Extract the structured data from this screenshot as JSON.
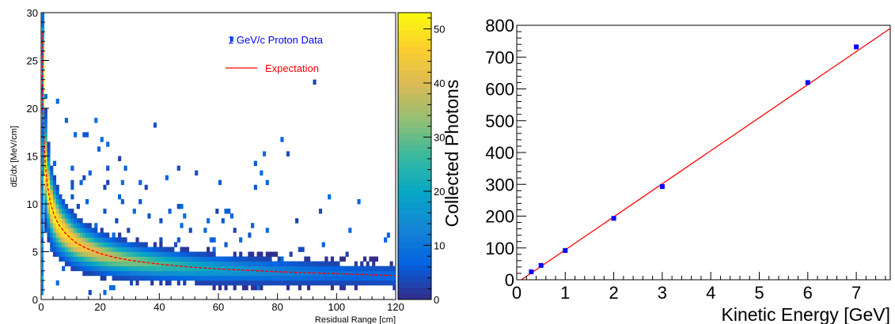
{
  "chart_data": [
    {
      "type": "heatmap",
      "title": "",
      "xlabel": "Residual Range [cm]",
      "ylabel": "dE/dx [MeV/cm]",
      "xlim": [
        0,
        120
      ],
      "ylim": [
        0,
        30
      ],
      "x_ticks": [
        0,
        20,
        40,
        60,
        80,
        100,
        120
      ],
      "y_ticks": [
        0,
        5,
        10,
        15,
        20,
        25,
        30
      ],
      "grid": false,
      "colorbar": {
        "range": [
          0,
          53
        ],
        "ticks": [
          0,
          10,
          20,
          30,
          40,
          50
        ],
        "palette": [
          "#352a87",
          "#0363e1",
          "#1485d4",
          "#06a7c6",
          "#38b99e",
          "#92bf73",
          "#d9ba56",
          "#fcce2e",
          "#f9fb0e"
        ]
      },
      "legend": {
        "placement": "top-right",
        "entries": [
          {
            "label": "1 GeV/c Proton Data",
            "color": "#0000ff",
            "kind": "text"
          },
          {
            "label": "Expectation",
            "color": "#ff0000",
            "kind": "line"
          }
        ]
      },
      "series": [
        {
          "kind": "density",
          "ridge": {
            "x": [
              0.3,
              0.6,
              1,
              1.5,
              2,
              3,
              4,
              5,
              6,
              8,
              10,
              12,
              15,
              20,
              25,
              30,
              40,
              50,
              60,
              70,
              80,
              90,
              100,
              110,
              120
            ],
            "y": [
              28,
              20,
              16.5,
              13.8,
              12.2,
              10.3,
              9.2,
              8.4,
              7.8,
              7.0,
              6.4,
              5.9,
              5.4,
              4.8,
              4.4,
              4.1,
              3.7,
              3.4,
              3.2,
              3.05,
              2.9,
              2.8,
              2.7,
              2.6,
              2.5
            ]
          }
        },
        {
          "name": "Expectation",
          "kind": "line",
          "color": "#ff0000",
          "x": [
            0.3,
            0.6,
            1,
            1.5,
            2,
            3,
            4,
            5,
            6,
            8,
            10,
            12,
            15,
            20,
            25,
            30,
            40,
            50,
            60,
            70,
            80,
            90,
            100,
            110,
            120
          ],
          "y": [
            28,
            20,
            16.5,
            13.8,
            12.2,
            10.3,
            9.2,
            8.4,
            7.8,
            7.0,
            6.4,
            5.9,
            5.4,
            4.8,
            4.4,
            4.1,
            3.7,
            3.4,
            3.2,
            3.05,
            2.9,
            2.8,
            2.7,
            2.6,
            2.5
          ]
        }
      ]
    },
    {
      "type": "scatter",
      "title": "",
      "xlabel": "Kinetic Energy [GeV]",
      "ylabel": "Collected Photons",
      "xlim": [
        0,
        7.7
      ],
      "ylim": [
        0,
        800
      ],
      "x_ticks": [
        0,
        1,
        2,
        3,
        4,
        5,
        6,
        7
      ],
      "y_ticks": [
        0,
        100,
        200,
        300,
        400,
        500,
        600,
        700,
        800
      ],
      "grid": false,
      "series": [
        {
          "kind": "points",
          "color": "#0000ff",
          "x": [
            0.3,
            0.5,
            1,
            2,
            3,
            6,
            7
          ],
          "y": [
            25,
            45,
            92,
            193,
            293,
            620,
            732
          ]
        },
        {
          "kind": "fit",
          "color": "#ff0000",
          "x": [
            0,
            7.7
          ],
          "y": [
            -10,
            790
          ]
        }
      ]
    }
  ]
}
